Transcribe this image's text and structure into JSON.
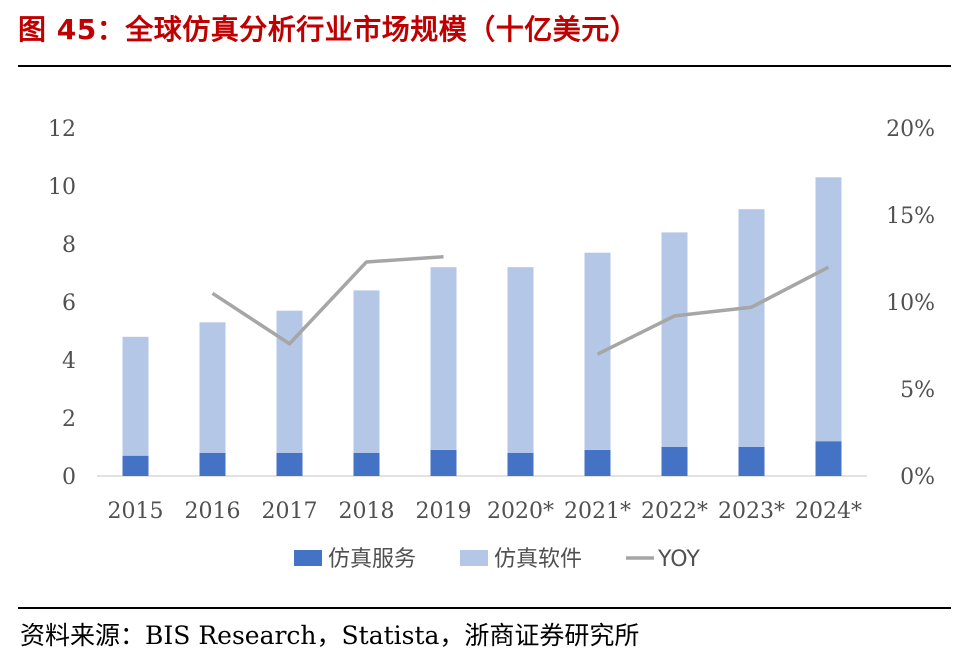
{
  "header": {
    "title": "图 45：全球仿真分析行业市场规模（十亿美元）"
  },
  "footer": {
    "source": "资料来源：BIS Research，Statista，浙商证券研究所"
  },
  "colors": {
    "service": "#4472c4",
    "software": "#b4c7e7",
    "yoy": "#a6a6a6"
  },
  "chart_data": {
    "type": "bar",
    "stacked": true,
    "categories": [
      "2015",
      "2016",
      "2017",
      "2018",
      "2019",
      "2020*",
      "2021*",
      "2022*",
      "2023*",
      "2024*"
    ],
    "series": [
      {
        "name": "仿真服务",
        "axis": "left",
        "values": [
          0.7,
          0.8,
          0.8,
          0.8,
          0.9,
          0.8,
          0.9,
          1.0,
          1.0,
          1.2
        ]
      },
      {
        "name": "仿真软件",
        "axis": "left",
        "values": [
          4.1,
          4.5,
          4.9,
          5.6,
          6.3,
          6.4,
          6.8,
          7.4,
          8.2,
          9.1
        ]
      },
      {
        "name": "YOY",
        "type": "line",
        "axis": "right",
        "values": [
          null,
          10.5,
          7.6,
          12.3,
          12.6,
          null,
          7.0,
          9.2,
          9.7,
          12.0
        ]
      }
    ],
    "y_left": {
      "min": 0,
      "max": 12,
      "ticks": [
        "0",
        "2",
        "4",
        "6",
        "8",
        "10",
        "12"
      ]
    },
    "y_right": {
      "min": 0,
      "max": 20,
      "ticks": [
        "0%",
        "5%",
        "10%",
        "15%",
        "20%"
      ]
    },
    "legend_position": "bottom",
    "grid": false
  }
}
